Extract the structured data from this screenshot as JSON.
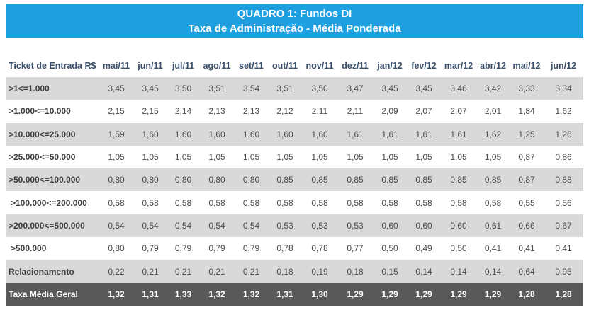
{
  "title": {
    "line1": "QUADRO 1: Fundos DI",
    "line2": "Taxa de Administração - Média Ponderada"
  },
  "table": {
    "header_label": "Ticket de Entrada R$",
    "months": [
      "mai/11",
      "jun/11",
      "jul/11",
      "ago/11",
      "set/11",
      "out/11",
      "nov/11",
      "dez/11",
      "jan/12",
      "fev/12",
      "mar/12",
      "abr/12",
      "mai/12",
      "jun/12"
    ],
    "rows": [
      {
        "label": ">1<=1.000",
        "values": [
          "3,45",
          "3,45",
          "3,50",
          "3,51",
          "3,54",
          "3,51",
          "3,50",
          "3,47",
          "3,45",
          "3,45",
          "3,46",
          "3,42",
          "3,33",
          "3,34"
        ]
      },
      {
        "label": ">1.000<=10.000",
        "values": [
          "2,15",
          "2,15",
          "2,14",
          "2,13",
          "2,13",
          "2,12",
          "2,11",
          "2,11",
          "2,09",
          "2,07",
          "2,07",
          "2,01",
          "1,84",
          "1,62"
        ]
      },
      {
        "label": ">10.000<=25.000",
        "values": [
          "1,59",
          "1,60",
          "1,60",
          "1,60",
          "1,60",
          "1,60",
          "1,60",
          "1,61",
          "1,61",
          "1,61",
          "1,61",
          "1,62",
          "1,25",
          "1,26"
        ]
      },
      {
        "label": ">25.000<=50.000",
        "values": [
          "1,05",
          "1,05",
          "1,05",
          "1,05",
          "1,05",
          "1,05",
          "1,05",
          "1,05",
          "1,05",
          "1,05",
          "1,05",
          "1,05",
          "0,87",
          "0,86"
        ]
      },
      {
        "label": ">50.000<=100.000",
        "values": [
          "0,80",
          "0,80",
          "0,80",
          "0,80",
          "0,80",
          "0,85",
          "0,85",
          "0,85",
          "0,85",
          "0,85",
          "0,85",
          "0,85",
          "0,87",
          "0,88"
        ]
      },
      {
        "label": ">100.000<=200.000",
        "values": [
          "0,58",
          "0,58",
          "0,58",
          "0,58",
          "0,58",
          "0,58",
          "0,58",
          "0,58",
          "0,58",
          "0,58",
          "0,58",
          "0,58",
          "0,55",
          "0,56"
        ]
      },
      {
        "label": ">200.000<=500.000",
        "values": [
          "0,54",
          "0,54",
          "0,54",
          "0,54",
          "0,54",
          "0,53",
          "0,53",
          "0,53",
          "0,60",
          "0,60",
          "0,60",
          "0,61",
          "0,66",
          "0,67"
        ]
      },
      {
        "label": ">500.000",
        "values": [
          "0,80",
          "0,79",
          "0,79",
          "0,79",
          "0,79",
          "0,78",
          "0,78",
          "0,77",
          "0,50",
          "0,49",
          "0,50",
          "0,41",
          "0,41",
          "0,41"
        ]
      },
      {
        "label": "Relacionamento",
        "values": [
          "0,22",
          "0,21",
          "0,21",
          "0,21",
          "0,21",
          "0,18",
          "0,19",
          "0,18",
          "0,15",
          "0,14",
          "0,14",
          "0,14",
          "0,64",
          "0,95"
        ]
      }
    ],
    "total": {
      "label": "Taxa Média Geral",
      "values": [
        "1,32",
        "1,31",
        "1,33",
        "1,32",
        "1,32",
        "1,31",
        "1,30",
        "1,29",
        "1,29",
        "1,29",
        "1,29",
        "1,29",
        "1,28",
        "1,28"
      ]
    }
  }
}
